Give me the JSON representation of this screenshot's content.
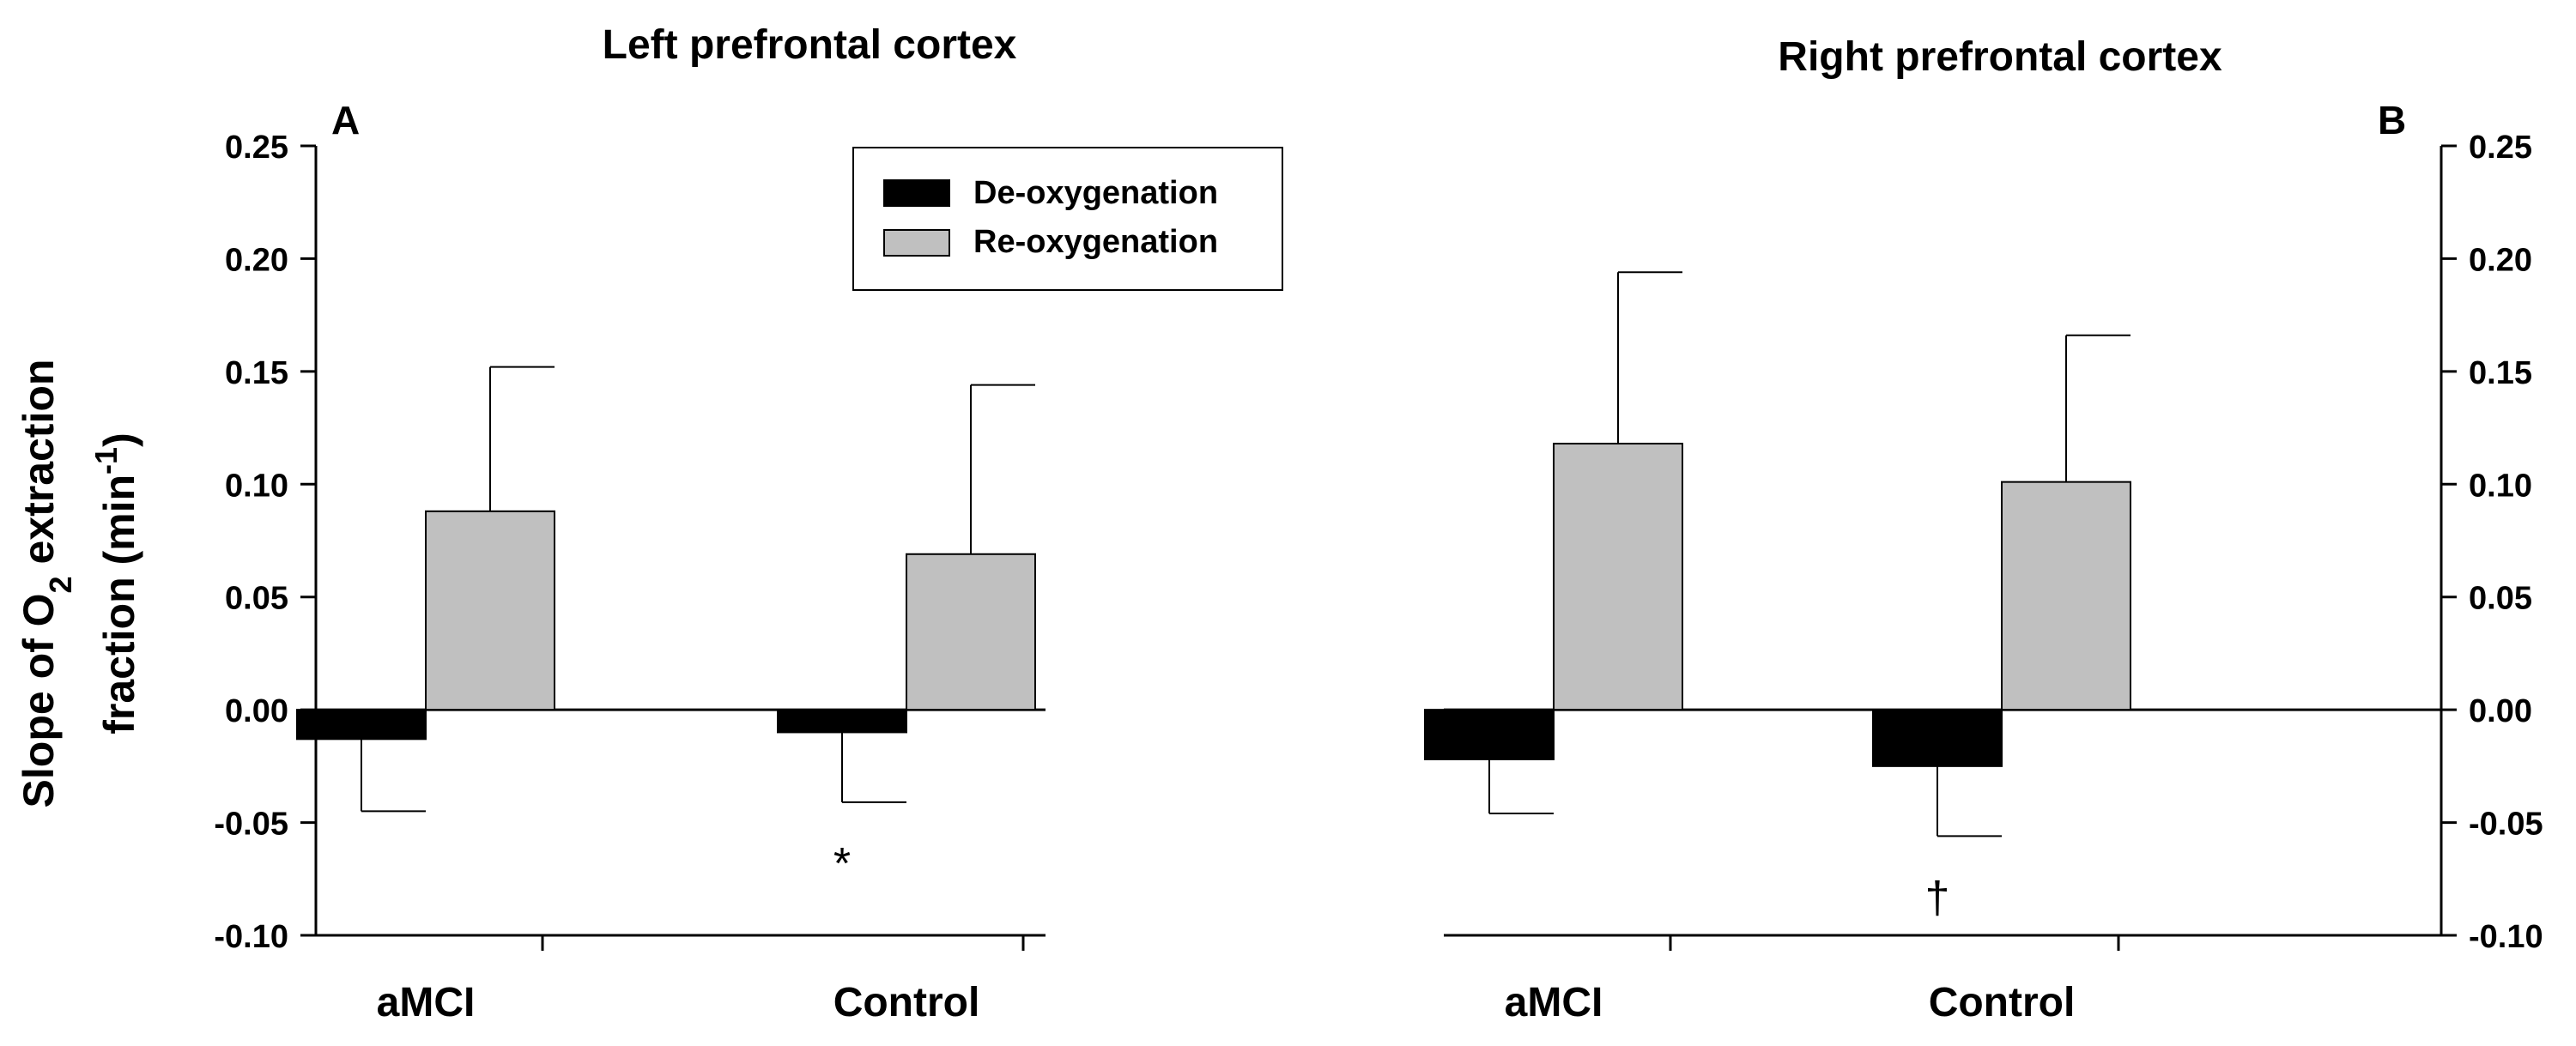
{
  "chart_data": [
    {
      "id": "A",
      "type": "bar",
      "title": "Left prefrontal cortex",
      "panel_label": "A",
      "categories": [
        "aMCI",
        "Control"
      ],
      "series": [
        {
          "name": "De-oxygenation",
          "color": "#000000",
          "values": [
            -0.013,
            -0.01
          ],
          "error": [
            0.032,
            0.031
          ]
        },
        {
          "name": "Re-oxygenation",
          "color": "#c0c0c0",
          "values": [
            0.088,
            0.069
          ],
          "error": [
            0.064,
            0.075
          ]
        }
      ],
      "ylim": [
        -0.1,
        0.25
      ],
      "yticks": [
        "0.25",
        "0.20",
        "0.15",
        "0.10",
        "0.05",
        "0.00",
        "-0.05",
        "-0.10"
      ],
      "ylabel_line1": "Slope of O",
      "ylabel_sub": "2",
      "ylabel_line1_end": " extraction",
      "ylabel_line2": "fraction (min",
      "ylabel_sup": "-1",
      "ylabel_line2_end": ")",
      "axis_side": "left",
      "annotation": {
        "text": "*",
        "category": "Control",
        "y": -0.068
      },
      "legend": {
        "placement": "top-center",
        "entries": [
          "De-oxygenation",
          "Re-oxygenation"
        ]
      }
    },
    {
      "id": "B",
      "type": "bar",
      "title": "Right prefrontal cortex",
      "panel_label": "B",
      "categories": [
        "aMCI",
        "Control"
      ],
      "series": [
        {
          "name": "De-oxygenation",
          "color": "#000000",
          "values": [
            -0.022,
            -0.025
          ],
          "error": [
            0.024,
            0.031
          ]
        },
        {
          "name": "Re-oxygenation",
          "color": "#c0c0c0",
          "values": [
            0.118,
            0.101
          ],
          "error": [
            0.076,
            0.065
          ]
        }
      ],
      "ylim": [
        -0.1,
        0.25
      ],
      "yticks": [
        "0.25",
        "0.20",
        "0.15",
        "0.10",
        "0.05",
        "0.00",
        "-0.05",
        "-0.10"
      ],
      "axis_side": "right",
      "annotation": {
        "text": "†",
        "category": "Control",
        "y": -0.083
      }
    }
  ]
}
